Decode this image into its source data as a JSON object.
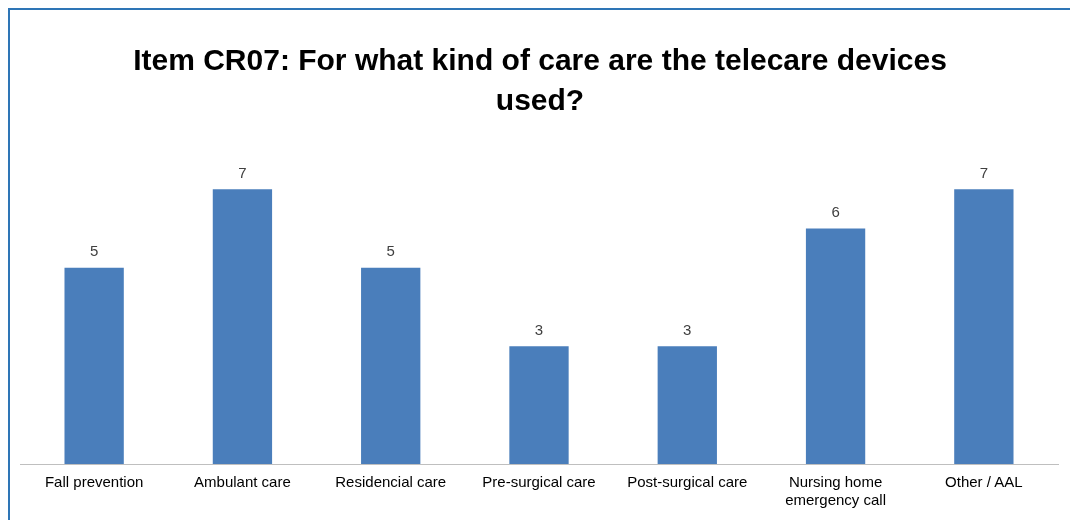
{
  "chart_data": {
    "type": "bar",
    "title": "Item CR07: For what kind of care are the telecare devices used?",
    "categories": [
      "Fall prevention",
      "Ambulant care",
      "Residencial care",
      "Pre-surgical care",
      "Post-surgical care",
      "Nursing home emergency call",
      "Other / AAL"
    ],
    "values": [
      5,
      7,
      5,
      3,
      3,
      6,
      7
    ],
    "color": "#4a7ebb",
    "data_labels": true,
    "grid": false,
    "legend": false
  }
}
